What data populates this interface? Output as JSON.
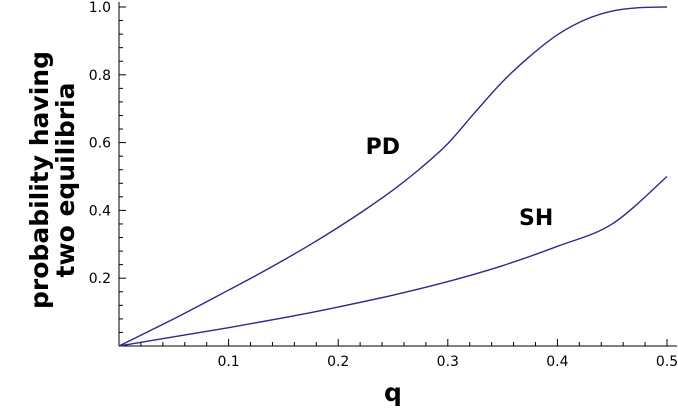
{
  "chart_data": {
    "type": "line",
    "xlabel": "q",
    "ylabel_lines": [
      "probability having",
      "two equilibria"
    ],
    "xlim": [
      0,
      0.5
    ],
    "ylim": [
      0,
      1.0
    ],
    "x_ticks": [
      "0.1",
      "0.2",
      "0.3",
      "0.4",
      "0.5"
    ],
    "y_ticks": [
      "0.2",
      "0.4",
      "0.6",
      "0.8",
      "1.0"
    ],
    "grid": false,
    "line_color": "#2b2b8c",
    "series": [
      {
        "name": "PD",
        "x": [
          0,
          0.025,
          0.05,
          0.075,
          0.1,
          0.125,
          0.15,
          0.175,
          0.2,
          0.225,
          0.25,
          0.275,
          0.3,
          0.325,
          0.35,
          0.375,
          0.4,
          0.425,
          0.45,
          0.475,
          0.5
        ],
        "values": [
          0,
          0.04,
          0.08,
          0.122,
          0.165,
          0.208,
          0.253,
          0.3,
          0.35,
          0.403,
          0.46,
          0.524,
          0.597,
          0.69,
          0.78,
          0.855,
          0.918,
          0.962,
          0.988,
          0.998,
          1.0
        ]
      },
      {
        "name": "SH",
        "x": [
          0,
          0.05,
          0.1,
          0.15,
          0.2,
          0.25,
          0.3,
          0.35,
          0.4,
          0.45,
          0.5
        ],
        "values": [
          0,
          0.027,
          0.054,
          0.083,
          0.115,
          0.15,
          0.19,
          0.237,
          0.294,
          0.36,
          0.5
        ]
      }
    ],
    "annotations": [
      {
        "text": "PD",
        "x": 0.225,
        "y": 0.59
      },
      {
        "text": "SH",
        "x": 0.365,
        "y": 0.38
      }
    ]
  }
}
